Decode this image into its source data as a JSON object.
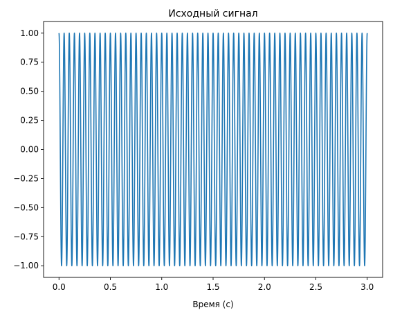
{
  "chart_data": {
    "type": "line",
    "title": "Исходный сигнал",
    "xlabel": "Время (с)",
    "ylabel": "",
    "xlim": [
      -0.15,
      3.15
    ],
    "ylim": [
      -1.1,
      1.1
    ],
    "x_ticks": [
      0.0,
      0.5,
      1.0,
      1.5,
      2.0,
      2.5,
      3.0
    ],
    "x_tick_labels": [
      "0.0",
      "0.5",
      "1.0",
      "1.5",
      "2.0",
      "2.5",
      "3.0"
    ],
    "y_ticks": [
      1.0,
      0.75,
      0.5,
      0.25,
      0.0,
      -0.25,
      -0.5,
      -0.75,
      -1.0
    ],
    "y_tick_labels": [
      "1.00",
      "0.75",
      "0.50",
      "0.25",
      "0.00",
      "−0.25",
      "−0.50",
      "−0.75",
      "−1.00"
    ],
    "grid": false,
    "series": [
      {
        "function": "cos(2*pi*f*t)",
        "frequency_hz": 20,
        "amplitude": 1.0,
        "t_start": 0.0,
        "t_end": 3.0,
        "color": "#1f77b4"
      }
    ]
  }
}
